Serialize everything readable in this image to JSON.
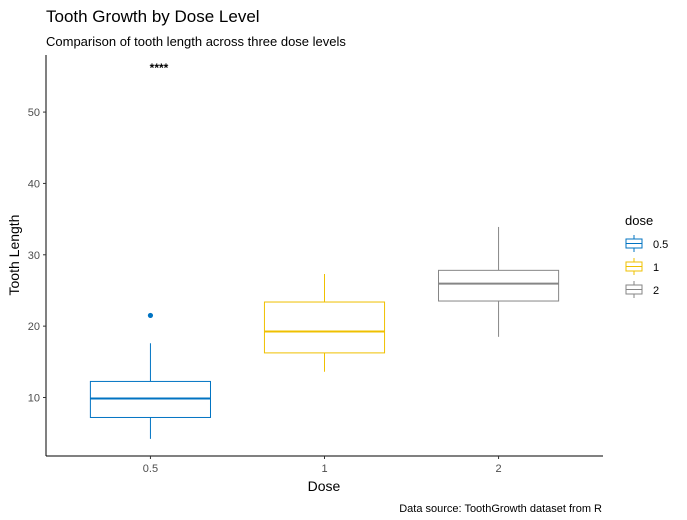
{
  "chart_data": {
    "type": "box",
    "title": "Tooth Growth by Dose Level",
    "subtitle": "Comparison of tooth length across three dose levels",
    "xlabel": "Dose",
    "ylabel": "Tooth Length",
    "caption": "Data source: ToothGrowth dataset from R",
    "categories": [
      "0.5",
      "1",
      "2"
    ],
    "y_ticks": [
      10,
      20,
      30,
      40,
      50
    ],
    "ylim": [
      1.8,
      58
    ],
    "grid": false,
    "legend": {
      "title": "dose",
      "position": "right",
      "entries": [
        "0.5",
        "1",
        "2"
      ]
    },
    "annotation": {
      "text": "****",
      "x_category": "0.5",
      "y": 56
    },
    "series": [
      {
        "category": "0.5",
        "color": "#0073C2",
        "min": 4.2,
        "q1": 7.2,
        "median": 9.85,
        "q3": 12.25,
        "max": 17.6,
        "outliers": [
          21.5
        ]
      },
      {
        "category": "1",
        "color": "#EFC000",
        "min": 13.6,
        "q1": 16.25,
        "median": 19.25,
        "q3": 23.38,
        "max": 27.3,
        "outliers": []
      },
      {
        "category": "2",
        "color": "#868686",
        "min": 18.5,
        "q1": 23.52,
        "median": 25.95,
        "q3": 27.82,
        "max": 33.9,
        "outliers": []
      }
    ]
  }
}
